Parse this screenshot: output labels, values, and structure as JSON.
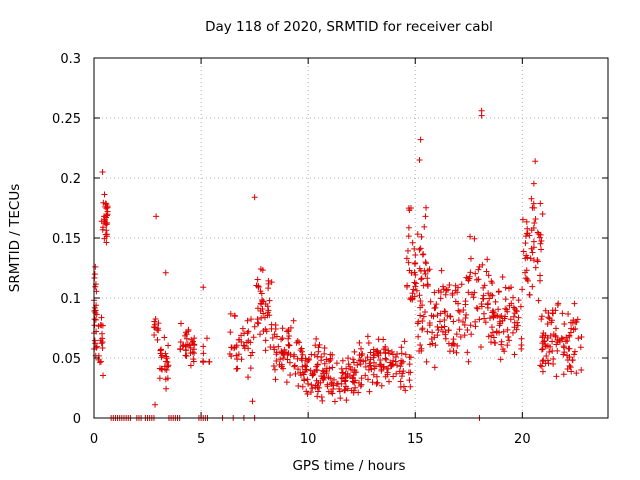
{
  "chart_data": {
    "type": "scatter",
    "title": "Day 118 of 2020, SRMTID for receiver cabl",
    "xlabel": "GPS time / hours",
    "ylabel": "SRMTID / TECUs",
    "xlim": [
      0,
      24
    ],
    "ylim": [
      0,
      0.3
    ],
    "x_ticks": [
      0,
      5,
      10,
      15,
      20
    ],
    "x_tick_labels": [
      "0",
      "5",
      "10",
      "15",
      "20"
    ],
    "y_ticks": [
      0,
      0.05,
      0.1,
      0.15,
      0.2,
      0.25,
      0.3
    ],
    "y_tick_labels": [
      "0",
      "0.05",
      "0.1",
      "0.15",
      "0.2",
      "0.25",
      "0.3"
    ],
    "grid": true,
    "marker_color": "#e00000",
    "marker": "plus",
    "series": [
      {
        "name": "SRMTID",
        "clusters": [
          {
            "x_range": [
              0.0,
              0.15
            ],
            "y_range": [
              0.04,
              0.13
            ],
            "count": 24
          },
          {
            "x_range": [
              0.2,
              0.45
            ],
            "y_range": [
              0.03,
              0.09
            ],
            "count": 16
          },
          {
            "x_range": [
              0.35,
              0.65
            ],
            "y_range": [
              0.13,
              0.2
            ],
            "count": 30
          },
          {
            "x_range": [
              2.8,
              3.1
            ],
            "y_range": [
              0.06,
              0.09
            ],
            "count": 12
          },
          {
            "x_range": [
              3.0,
              3.5
            ],
            "y_range": [
              0.02,
              0.07
            ],
            "count": 26
          },
          {
            "x_range": [
              4.0,
              4.7
            ],
            "y_range": [
              0.04,
              0.08
            ],
            "count": 34
          },
          {
            "x_range": [
              5.0,
              5.5
            ],
            "y_range": [
              0.04,
              0.07
            ],
            "count": 8
          },
          {
            "x_range": [
              6.3,
              7.5
            ],
            "y_range": [
              0.03,
              0.09
            ],
            "count": 40
          },
          {
            "x_range": [
              7.5,
              8.3
            ],
            "y_range": [
              0.05,
              0.13
            ],
            "count": 44
          },
          {
            "x_range": [
              8.3,
              9.6
            ],
            "y_range": [
              0.02,
              0.09
            ],
            "count": 60
          },
          {
            "x_range": [
              9.6,
              10.9
            ],
            "y_range": [
              0.01,
              0.07
            ],
            "count": 80
          },
          {
            "x_range": [
              10.9,
              12.3
            ],
            "y_range": [
              0.01,
              0.06
            ],
            "count": 70
          },
          {
            "x_range": [
              12.3,
              14.8
            ],
            "y_range": [
              0.02,
              0.07
            ],
            "count": 110
          },
          {
            "x_range": [
              14.6,
              15.6
            ],
            "y_range": [
              0.07,
              0.19
            ],
            "count": 50
          },
          {
            "x_range": [
              15.0,
              17.5
            ],
            "y_range": [
              0.04,
              0.13
            ],
            "count": 110
          },
          {
            "x_range": [
              17.5,
              18.6
            ],
            "y_range": [
              0.05,
              0.16
            ],
            "count": 50
          },
          {
            "x_range": [
              18.6,
              20.0
            ],
            "y_range": [
              0.04,
              0.12
            ],
            "count": 70
          },
          {
            "x_range": [
              20.0,
              21.0
            ],
            "y_range": [
              0.09,
              0.2
            ],
            "count": 50
          },
          {
            "x_range": [
              20.8,
              22.8
            ],
            "y_range": [
              0.03,
              0.1
            ],
            "count": 100
          }
        ],
        "notable_points": [
          {
            "x": 0.4,
            "y": 0.205
          },
          {
            "x": 2.9,
            "y": 0.168
          },
          {
            "x": 3.35,
            "y": 0.121
          },
          {
            "x": 5.1,
            "y": 0.109
          },
          {
            "x": 7.5,
            "y": 0.184
          },
          {
            "x": 7.4,
            "y": 0.014
          },
          {
            "x": 15.25,
            "y": 0.232
          },
          {
            "x": 15.2,
            "y": 0.215
          },
          {
            "x": 18.1,
            "y": 0.256
          },
          {
            "x": 18.1,
            "y": 0.252
          },
          {
            "x": 20.6,
            "y": 0.214
          },
          {
            "x": 2.85,
            "y": 0.011
          }
        ],
        "zero_points_x": [
          0.8,
          0.9,
          1.0,
          1.1,
          1.2,
          1.3,
          1.4,
          1.5,
          1.6,
          1.7,
          2.0,
          2.1,
          2.2,
          2.4,
          2.5,
          2.6,
          2.7,
          2.8,
          3.5,
          3.6,
          3.7,
          3.8,
          3.9,
          4.0,
          4.9,
          5.0,
          5.1,
          5.2,
          5.3,
          6.0,
          6.5,
          7.0,
          7.5,
          18.0
        ]
      }
    ]
  }
}
